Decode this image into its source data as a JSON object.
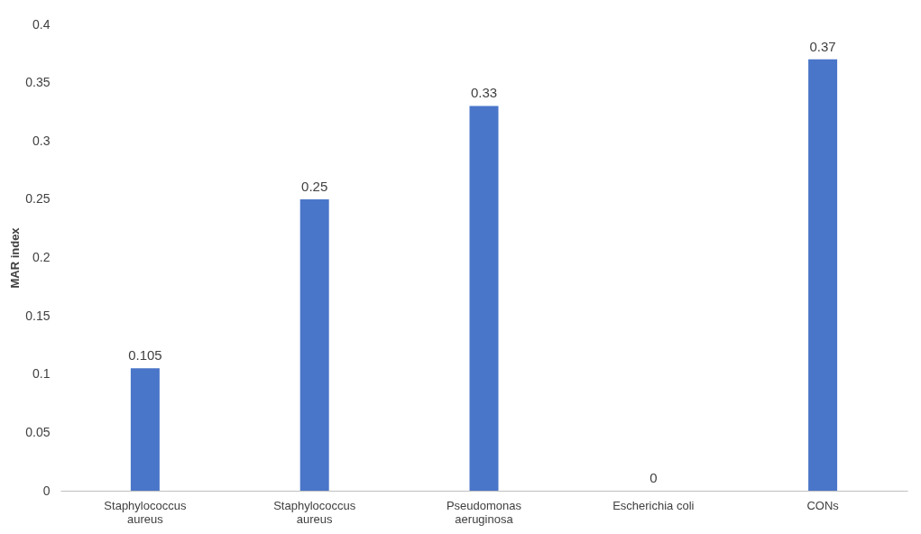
{
  "chart_data": {
    "type": "bar",
    "categories": [
      "Staphylococcus aureus",
      "Staphylococcus aureus",
      "Pseudomonas aeruginosa",
      "Escherichia coli",
      "CONs"
    ],
    "values": [
      0.105,
      0.25,
      0.33,
      0,
      0.37
    ],
    "color": "#4a76c9",
    "ylabel": "MAR index",
    "ylim": [
      0,
      0.4
    ],
    "yticks": [
      0,
      0.05,
      0.1,
      0.15,
      0.2,
      0.25,
      0.3,
      0.35,
      0.4
    ],
    "data_labels": true,
    "grid": false
  }
}
